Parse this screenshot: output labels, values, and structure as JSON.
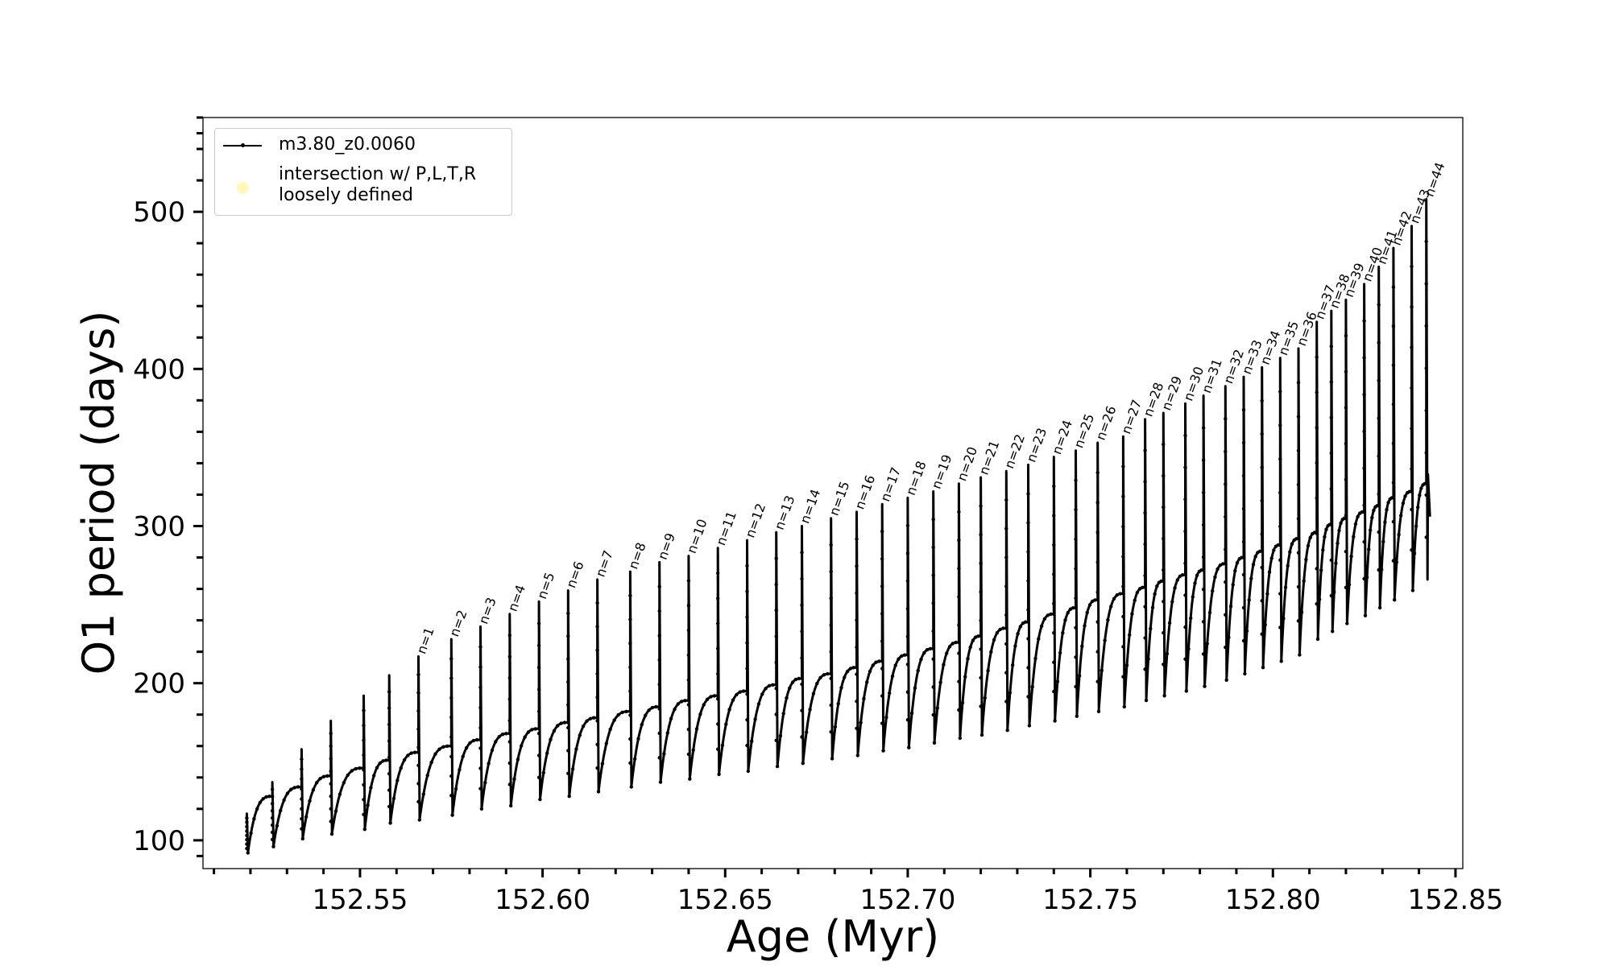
{
  "chart_data": {
    "type": "line",
    "xlabel": "Age (Myr)",
    "ylabel": "O1 period (days)",
    "xlim": [
      152.507,
      152.852
    ],
    "ylim": [
      82,
      560
    ],
    "x_ticks": [
      "152.55",
      "152.60",
      "152.65",
      "152.70",
      "152.75",
      "152.80",
      "152.85"
    ],
    "y_ticks": [
      "100",
      "200",
      "300",
      "400",
      "500"
    ],
    "legend": {
      "position": "upper-left",
      "entries": [
        {
          "label": "m3.80_z0.0060",
          "marker": "line-with-point",
          "color": "#000000"
        },
        {
          "label": "intersection w/ P,L,T,R\nloosely defined",
          "marker": "circle",
          "color": "#fff7b3"
        }
      ]
    },
    "series": [
      {
        "name": "m3.80_z0.0060",
        "color": "#000000",
        "description_of_shape": "repeated thermal-pulse cycles: each cycle starts at a dip, rises steeply then flattens toward the next pulse, where a vertical spike occurs",
        "pre_numbered_pulses": [
          {
            "x": 152.519,
            "peak": 117,
            "dip": 92,
            "end": 128
          },
          {
            "x": 152.526,
            "peak": 137,
            "dip": 96,
            "end": 134
          },
          {
            "x": 152.534,
            "peak": 158,
            "dip": 101,
            "end": 141
          },
          {
            "x": 152.542,
            "peak": 176,
            "dip": 104,
            "end": 146
          },
          {
            "x": 152.551,
            "peak": 192,
            "dip": 107,
            "end": 151
          },
          {
            "x": 152.558,
            "peak": 205,
            "dip": 111,
            "end": 156
          }
        ],
        "numbered_pulses": [
          {
            "n": "n=1",
            "x": 152.566,
            "peak": 217,
            "dip": 113,
            "end": 160
          },
          {
            "n": "n=2",
            "x": 152.575,
            "peak": 228,
            "dip": 116,
            "end": 164
          },
          {
            "n": "n=3",
            "x": 152.583,
            "peak": 236,
            "dip": 120,
            "end": 168
          },
          {
            "n": "n=4",
            "x": 152.591,
            "peak": 244,
            "dip": 122,
            "end": 171
          },
          {
            "n": "n=5",
            "x": 152.599,
            "peak": 252,
            "dip": 126,
            "end": 175
          },
          {
            "n": "n=6",
            "x": 152.607,
            "peak": 259,
            "dip": 128,
            "end": 178
          },
          {
            "n": "n=7",
            "x": 152.615,
            "peak": 266,
            "dip": 131,
            "end": 182
          },
          {
            "n": "n=8",
            "x": 152.624,
            "peak": 271,
            "dip": 134,
            "end": 185
          },
          {
            "n": "n=9",
            "x": 152.632,
            "peak": 277,
            "dip": 137,
            "end": 189
          },
          {
            "n": "n=10",
            "x": 152.64,
            "peak": 281,
            "dip": 139,
            "end": 192
          },
          {
            "n": "n=11",
            "x": 152.648,
            "peak": 286,
            "dip": 142,
            "end": 195
          },
          {
            "n": "n=12",
            "x": 152.656,
            "peak": 291,
            "dip": 144,
            "end": 199
          },
          {
            "n": "n=13",
            "x": 152.664,
            "peak": 296,
            "dip": 147,
            "end": 203
          },
          {
            "n": "n=14",
            "x": 152.671,
            "peak": 300,
            "dip": 149,
            "end": 206
          },
          {
            "n": "n=15",
            "x": 152.679,
            "peak": 305,
            "dip": 152,
            "end": 210
          },
          {
            "n": "n=16",
            "x": 152.686,
            "peak": 309,
            "dip": 154,
            "end": 214
          },
          {
            "n": "n=17",
            "x": 152.693,
            "peak": 314,
            "dip": 157,
            "end": 218
          },
          {
            "n": "n=18",
            "x": 152.7,
            "peak": 318,
            "dip": 159,
            "end": 222
          },
          {
            "n": "n=19",
            "x": 152.707,
            "peak": 322,
            "dip": 162,
            "end": 226
          },
          {
            "n": "n=20",
            "x": 152.714,
            "peak": 327,
            "dip": 165,
            "end": 230
          },
          {
            "n": "n=21",
            "x": 152.72,
            "peak": 331,
            "dip": 167,
            "end": 235
          },
          {
            "n": "n=22",
            "x": 152.727,
            "peak": 335,
            "dip": 170,
            "end": 239
          },
          {
            "n": "n=23",
            "x": 152.733,
            "peak": 339,
            "dip": 173,
            "end": 244
          },
          {
            "n": "n=24",
            "x": 152.74,
            "peak": 344,
            "dip": 176,
            "end": 248
          },
          {
            "n": "n=25",
            "x": 152.746,
            "peak": 348,
            "dip": 179,
            "end": 253
          },
          {
            "n": "n=26",
            "x": 152.752,
            "peak": 353,
            "dip": 182,
            "end": 257
          },
          {
            "n": "n=27",
            "x": 152.759,
            "peak": 357,
            "dip": 185,
            "end": 261
          },
          {
            "n": "n=28",
            "x": 152.765,
            "peak": 368,
            "dip": 189,
            "end": 265
          },
          {
            "n": "n=29",
            "x": 152.77,
            "peak": 372,
            "dip": 192,
            "end": 269
          },
          {
            "n": "n=30",
            "x": 152.776,
            "peak": 378,
            "dip": 195,
            "end": 272
          },
          {
            "n": "n=31",
            "x": 152.781,
            "peak": 383,
            "dip": 198,
            "end": 276
          },
          {
            "n": "n=32",
            "x": 152.787,
            "peak": 389,
            "dip": 202,
            "end": 280
          },
          {
            "n": "n=33",
            "x": 152.792,
            "peak": 395,
            "dip": 206,
            "end": 284
          },
          {
            "n": "n=34",
            "x": 152.797,
            "peak": 401,
            "dip": 210,
            "end": 288
          },
          {
            "n": "n=35",
            "x": 152.802,
            "peak": 407,
            "dip": 214,
            "end": 292
          },
          {
            "n": "n=36",
            "x": 152.807,
            "peak": 413,
            "dip": 218,
            "end": 296
          },
          {
            "n": "n=37",
            "x": 152.812,
            "peak": 430,
            "dip": 228,
            "end": 301
          },
          {
            "n": "n=38",
            "x": 152.816,
            "peak": 437,
            "dip": 233,
            "end": 305
          },
          {
            "n": "n=39",
            "x": 152.82,
            "peak": 444,
            "dip": 238,
            "end": 309
          },
          {
            "n": "n=40",
            "x": 152.825,
            "peak": 454,
            "dip": 243,
            "end": 313
          },
          {
            "n": "n=41",
            "x": 152.829,
            "peak": 465,
            "dip": 248,
            "end": 318
          },
          {
            "n": "n=42",
            "x": 152.833,
            "peak": 477,
            "dip": 253,
            "end": 322
          },
          {
            "n": "n=43",
            "x": 152.838,
            "peak": 491,
            "dip": 259,
            "end": 327
          },
          {
            "n": "n=44",
            "x": 152.842,
            "peak": 508,
            "dip": 266,
            "end": 333
          }
        ],
        "final_point": {
          "x": 152.843,
          "y": 306
        }
      }
    ],
    "grid": false
  }
}
